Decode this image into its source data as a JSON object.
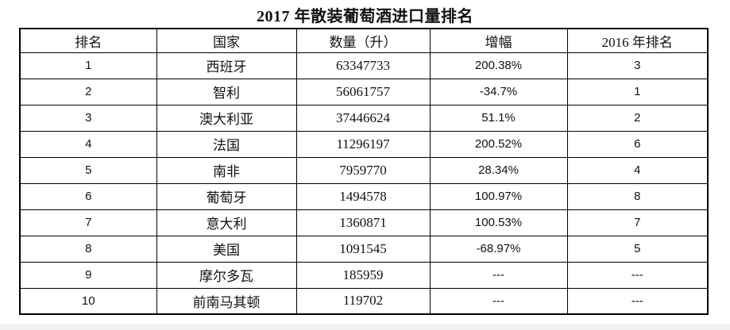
{
  "title": "2017 年散装葡萄酒进口量排名",
  "chart_data": {
    "type": "table",
    "title": "2017 年散装葡萄酒进口量排名",
    "columns": [
      "排名",
      "国家",
      "数量（升）",
      "增幅",
      "2016 年排名"
    ],
    "rows": [
      [
        "1",
        "西班牙",
        "63347733",
        "200.38%",
        "3"
      ],
      [
        "2",
        "智利",
        "56061757",
        "-34.7%",
        "1"
      ],
      [
        "3",
        "澳大利亚",
        "37446624",
        "51.1%",
        "2"
      ],
      [
        "4",
        "法国",
        "11296197",
        "200.52%",
        "6"
      ],
      [
        "5",
        "南非",
        "7959770",
        "28.34%",
        "4"
      ],
      [
        "6",
        "葡萄牙",
        "1494578",
        "100.97%",
        "8"
      ],
      [
        "7",
        "意大利",
        "1360871",
        "100.53%",
        "7"
      ],
      [
        "8",
        "美国",
        "1091545",
        "-68.97%",
        "5"
      ],
      [
        "9",
        "摩尔多瓦",
        "185959",
        "---",
        "---"
      ],
      [
        "10",
        "前南马其顿",
        "119702",
        "---",
        "---"
      ]
    ]
  },
  "colors": {
    "border": "#000000",
    "text": "#111111",
    "background": "#ffffff",
    "bottom_strip": "#f1f1f1"
  }
}
